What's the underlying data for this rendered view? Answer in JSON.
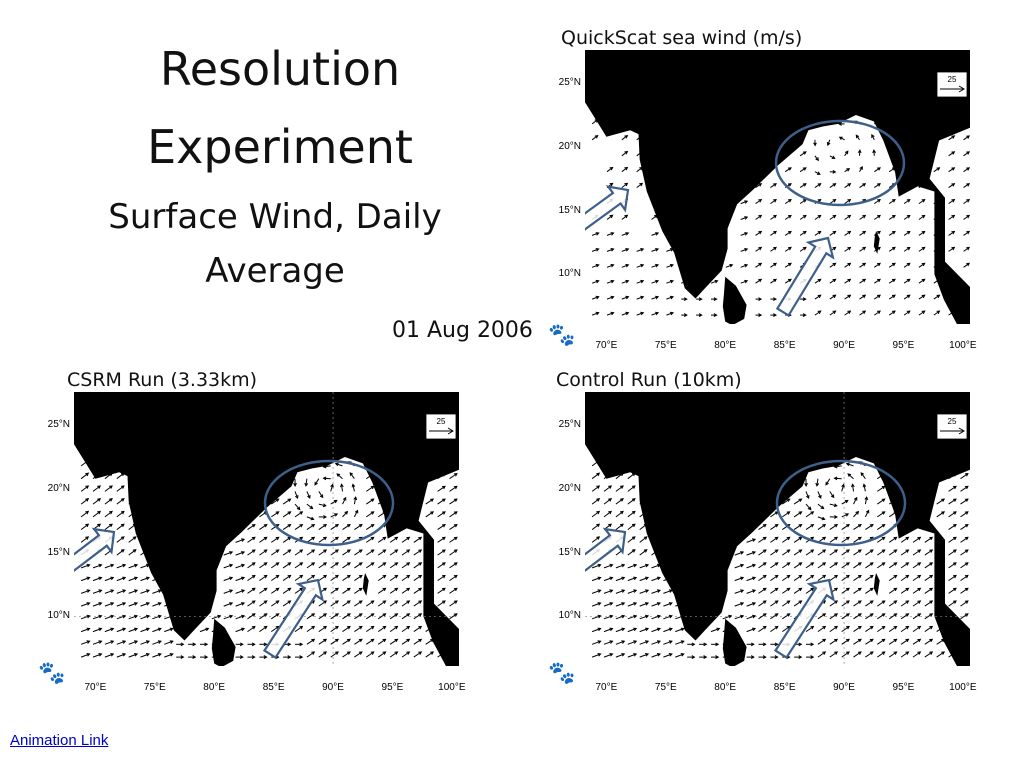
{
  "slide": {
    "title": "Resolution Experiment",
    "subtitle": "Surface Wind, Daily Average",
    "date": "01 Aug 2006",
    "link": "Animation Link"
  },
  "maps": {
    "lat_labels": [
      "25°N",
      "20°N",
      "15°N",
      "10°N"
    ],
    "lon_labels": [
      "70°E",
      "75°E",
      "80°E",
      "85°E",
      "90°E",
      "95°E",
      "100°E"
    ],
    "ref_vector": "25",
    "panels": [
      {
        "id": "quickscat",
        "title": "QuickScat sea wind (m/s)"
      },
      {
        "id": "csrm",
        "title": "CSRM Run (3.33km)"
      },
      {
        "id": "control",
        "title": "Control Run (10km)"
      }
    ]
  },
  "colors": {
    "land": "#000000",
    "ocean": "#ffffff",
    "highlight": "#3d5f8a",
    "link": "#0000cc"
  }
}
